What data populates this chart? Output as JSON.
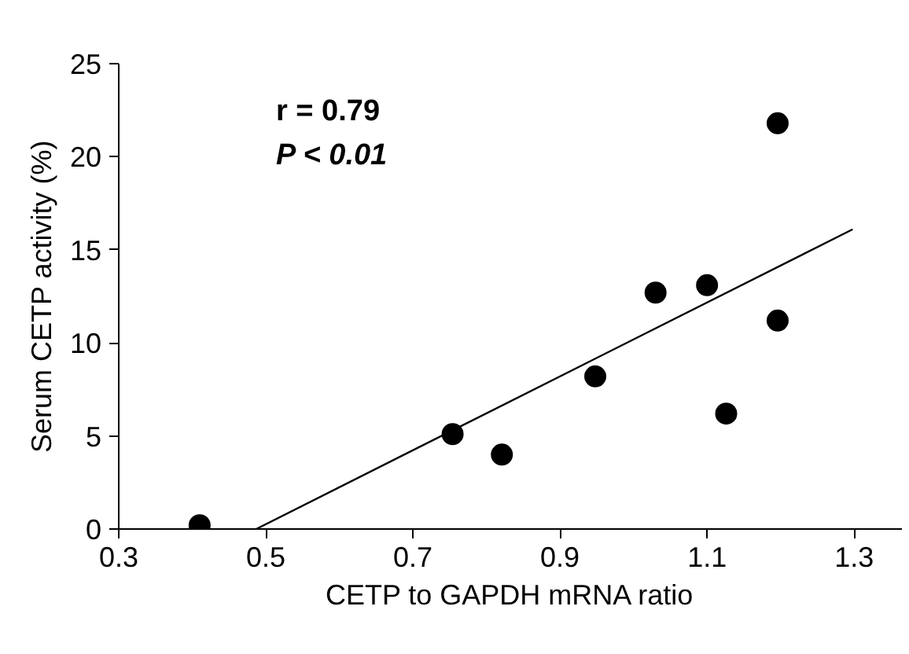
{
  "chart_data": {
    "type": "scatter",
    "xlabel": "CETP to GAPDH mRNA ratio",
    "ylabel": "Serum CETP activity (%)",
    "annotations": [
      "r = 0.79",
      "P < 0.01"
    ],
    "xlim": [
      0.3,
      1.365
    ],
    "ylim": [
      0,
      25
    ],
    "xticks": [
      0.3,
      0.5,
      0.7,
      0.9,
      1.1,
      1.3
    ],
    "yticks": [
      0,
      5,
      10,
      15,
      20,
      25
    ],
    "grid": false,
    "series": [
      {
        "color": "#000000",
        "marker": "circle",
        "x": [
          0.41,
          0.754,
          0.821,
          0.948,
          1.03,
          1.1,
          1.126,
          1.196,
          1.196
        ],
        "values": [
          0.2,
          5.1,
          4.0,
          8.2,
          12.7,
          13.1,
          6.2,
          21.8,
          11.2
        ]
      },
      {
        "type": "line",
        "color": "#000000",
        "line_style": "solid",
        "marker": "none",
        "x": [
          0.487,
          1.298
        ],
        "values": [
          0,
          16.1
        ]
      }
    ]
  }
}
